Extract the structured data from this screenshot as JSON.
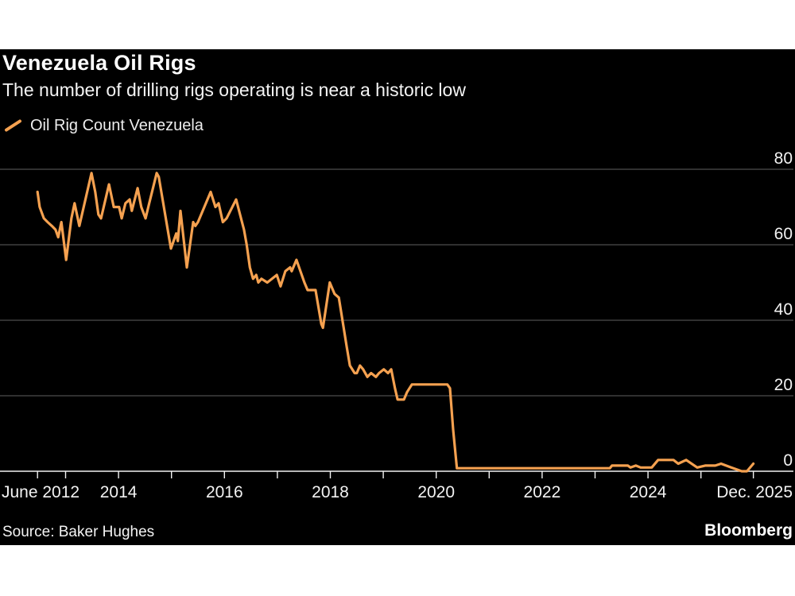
{
  "header": {
    "title": "Venezuela Oil Rigs",
    "subtitle": "The number of drilling rigs operating is near a historic low"
  },
  "legend": {
    "marker_icon": "orange-slash-icon",
    "label": "Oil Rig Count Venezuela"
  },
  "footer": {
    "source": "Source: Baker Hughes",
    "brand": "Bloomberg"
  },
  "colors": {
    "page_background": "#ffffff",
    "chart_background": "#000000",
    "line": "#f5a150",
    "grid": "#4d4d4d",
    "axis": "#f2f2f2",
    "tick_label": "#f2f2f2"
  },
  "chart_data": {
    "type": "line",
    "title": "Venezuela Oil Rigs",
    "subtitle": "The number of drilling rigs operating is near a historic low",
    "legend_position": "top-left",
    "grid": "horizontal-only",
    "x_axis": {
      "range": [
        2012.47,
        2025.99
      ],
      "tick_positions": [
        2012.47,
        2013,
        2014,
        2015,
        2016,
        2017,
        2018,
        2019,
        2020,
        2021,
        2022,
        2023,
        2024,
        2025,
        2025.99
      ],
      "labels": [
        {
          "t": 2012.47,
          "label": "June 2012"
        },
        {
          "t": 2014,
          "label": "2014"
        },
        {
          "t": 2016,
          "label": "2016"
        },
        {
          "t": 2018,
          "label": "2018"
        },
        {
          "t": 2020,
          "label": "2020"
        },
        {
          "t": 2022,
          "label": "2022"
        },
        {
          "t": 2024,
          "label": "2024"
        },
        {
          "t": 2025.97,
          "label": "Dec. 2025"
        }
      ]
    },
    "y_axis": {
      "side": "right",
      "range": [
        0,
        80
      ],
      "ticks": [
        0,
        20,
        40,
        60,
        80
      ],
      "gridlines": [
        20,
        40,
        60,
        80
      ]
    },
    "series": [
      {
        "name": "Oil Rig Count Venezuela",
        "points": [
          [
            2012.47,
            74
          ],
          [
            2012.51,
            70
          ],
          [
            2012.59,
            67
          ],
          [
            2012.66,
            66
          ],
          [
            2012.74,
            65
          ],
          [
            2012.81,
            64
          ],
          [
            2012.86,
            62
          ],
          [
            2012.92,
            66
          ],
          [
            2013.01,
            56
          ],
          [
            2013.11,
            67
          ],
          [
            2013.17,
            71
          ],
          [
            2013.26,
            65
          ],
          [
            2013.49,
            79
          ],
          [
            2013.56,
            74
          ],
          [
            2013.62,
            68
          ],
          [
            2013.67,
            67
          ],
          [
            2013.82,
            76
          ],
          [
            2013.91,
            70
          ],
          [
            2014.01,
            70
          ],
          [
            2014.06,
            67
          ],
          [
            2014.13,
            71
          ],
          [
            2014.21,
            72
          ],
          [
            2014.25,
            69
          ],
          [
            2014.36,
            75
          ],
          [
            2014.43,
            70
          ],
          [
            2014.51,
            67
          ],
          [
            2014.58,
            71
          ],
          [
            2014.72,
            79
          ],
          [
            2014.76,
            78
          ],
          [
            2014.99,
            59
          ],
          [
            2015.09,
            63
          ],
          [
            2015.12,
            61
          ],
          [
            2015.17,
            69
          ],
          [
            2015.29,
            54
          ],
          [
            2015.41,
            66
          ],
          [
            2015.45,
            65
          ],
          [
            2015.5,
            66
          ],
          [
            2015.74,
            74
          ],
          [
            2015.83,
            70
          ],
          [
            2015.89,
            71
          ],
          [
            2015.97,
            66
          ],
          [
            2016.04,
            67
          ],
          [
            2016.22,
            72
          ],
          [
            2016.37,
            64
          ],
          [
            2016.42,
            60
          ],
          [
            2016.48,
            54
          ],
          [
            2016.54,
            51
          ],
          [
            2016.6,
            52
          ],
          [
            2016.64,
            50
          ],
          [
            2016.7,
            51
          ],
          [
            2016.81,
            50
          ],
          [
            2016.9,
            51
          ],
          [
            2016.99,
            52
          ],
          [
            2017.06,
            49
          ],
          [
            2017.15,
            53
          ],
          [
            2017.24,
            54
          ],
          [
            2017.27,
            53
          ],
          [
            2017.36,
            56
          ],
          [
            2017.51,
            50
          ],
          [
            2017.57,
            48
          ],
          [
            2017.72,
            48
          ],
          [
            2017.83,
            39
          ],
          [
            2017.86,
            38
          ],
          [
            2017.99,
            50
          ],
          [
            2018.08,
            47
          ],
          [
            2018.16,
            46
          ],
          [
            2018.31,
            33
          ],
          [
            2018.37,
            28
          ],
          [
            2018.46,
            26
          ],
          [
            2018.5,
            26
          ],
          [
            2018.56,
            28
          ],
          [
            2018.62,
            27
          ],
          [
            2018.7,
            25
          ],
          [
            2018.77,
            26
          ],
          [
            2018.86,
            25
          ],
          [
            2018.92,
            26
          ],
          [
            2019.01,
            27
          ],
          [
            2019.09,
            26
          ],
          [
            2019.15,
            27
          ],
          [
            2019.22,
            22
          ],
          [
            2019.27,
            19
          ],
          [
            2019.39,
            19
          ],
          [
            2019.45,
            21
          ],
          [
            2019.54,
            23
          ],
          [
            2020.21,
            23
          ],
          [
            2020.26,
            22
          ],
          [
            2020.32,
            11
          ],
          [
            2020.39,
            0.8
          ],
          [
            2021.5,
            0.8
          ],
          [
            2023.28,
            0.8
          ],
          [
            2023.32,
            1.5
          ],
          [
            2023.62,
            1.5
          ],
          [
            2023.67,
            1
          ],
          [
            2023.77,
            1.5
          ],
          [
            2023.86,
            1
          ],
          [
            2024.07,
            1
          ],
          [
            2024.19,
            3
          ],
          [
            2024.48,
            3
          ],
          [
            2024.57,
            2
          ],
          [
            2024.72,
            3
          ],
          [
            2024.93,
            1
          ],
          [
            2025.08,
            1.5
          ],
          [
            2025.27,
            1.5
          ],
          [
            2025.38,
            2
          ],
          [
            2025.57,
            1
          ],
          [
            2025.77,
            0
          ],
          [
            2025.87,
            0
          ],
          [
            2025.99,
            2
          ]
        ]
      }
    ]
  }
}
